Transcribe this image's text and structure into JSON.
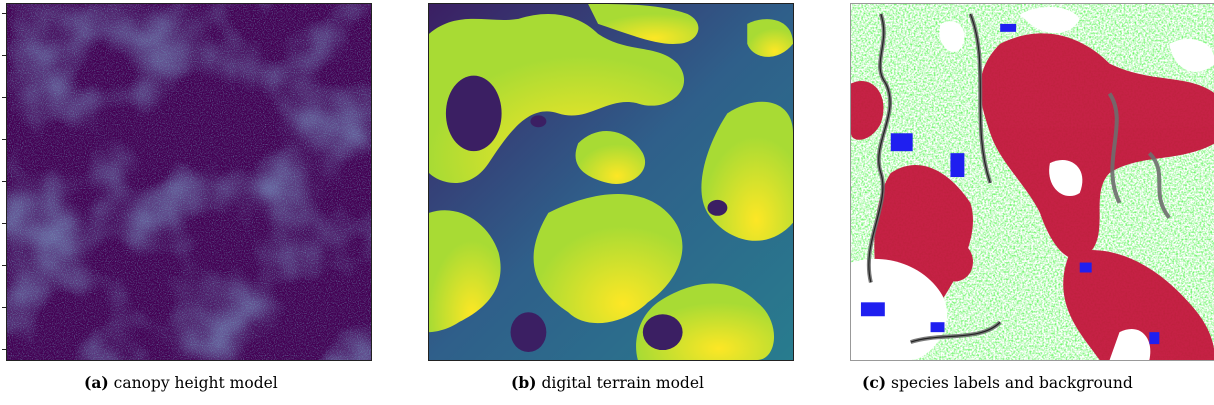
{
  "figure": {
    "panels": [
      {
        "label": "(a)",
        "caption": "canopy height model",
        "image": "canopy-height-model"
      },
      {
        "label": "(b)",
        "caption": "digital terrain model",
        "image": "digital-terrain-model"
      },
      {
        "label": "(c)",
        "caption": "species labels and background",
        "image": "species-labels-map"
      }
    ],
    "colors": {
      "chm_base": "#440154",
      "chm_mid": "#2c4a8a",
      "chm_high": "#2aa78c",
      "dtm_low": "#3b1f63",
      "dtm_mid": "#287c8e",
      "dtm_high": "#bddf26",
      "dtm_peak": "#fde725",
      "species_red": "#c3163c",
      "species_green": "#22e81e",
      "species_blue": "#1f1ff0",
      "background_gray": "#8c8c8c",
      "background_white": "#ffffff"
    }
  }
}
